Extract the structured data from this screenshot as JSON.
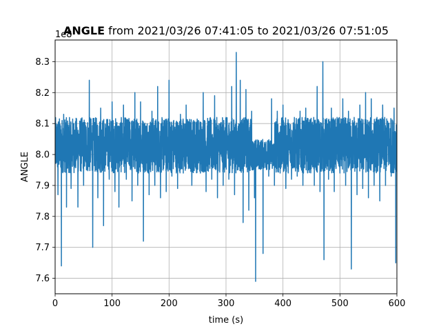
{
  "chart_data": {
    "type": "line",
    "title_bold": "ANGLE",
    "title_rest": " from 2021/03/26 07:41:05 to 2021/03/26 07:51:05",
    "xlabel": "time (s)",
    "ylabel": "ANGLE",
    "offset_text": "1e8",
    "xlim": [
      0,
      600
    ],
    "ylim": [
      7.55,
      8.37
    ],
    "xticks": [
      0,
      100,
      200,
      300,
      400,
      500,
      600
    ],
    "xtick_labels": [
      "0",
      "100",
      "200",
      "300",
      "400",
      "500",
      "600"
    ],
    "yticks": [
      7.6,
      7.7,
      7.8,
      7.9,
      8.0,
      8.1,
      8.2,
      8.3
    ],
    "ytick_labels": [
      "7.6",
      "7.7",
      "7.8",
      "7.9",
      "8.0",
      "8.1",
      "8.2",
      "8.3"
    ],
    "grid": true,
    "color": "#1f77b4",
    "series": [
      {
        "x": [
          0,
          5,
          10,
          11,
          15,
          20,
          25,
          28,
          32,
          40,
          45,
          50,
          52,
          55,
          60,
          66,
          68,
          75,
          80,
          85,
          90,
          95,
          100,
          105,
          110,
          112,
          120,
          125,
          130,
          135,
          140,
          145,
          150,
          155,
          160,
          165,
          170,
          175,
          180,
          185,
          190,
          195,
          200,
          205,
          210,
          215,
          220,
          225,
          230,
          240,
          250,
          255,
          260,
          265,
          270,
          275,
          280,
          285,
          290,
          295,
          300,
          305,
          310,
          315,
          318,
          320,
          325,
          330,
          335,
          340,
          345,
          350,
          352,
          355,
          360,
          365,
          370,
          375,
          380,
          385,
          390,
          395,
          400,
          405,
          410,
          415,
          420,
          425,
          430,
          435,
          440,
          445,
          450,
          455,
          460,
          465,
          470,
          472,
          475,
          480,
          485,
          490,
          495,
          500,
          505,
          510,
          515,
          520,
          525,
          530,
          535,
          540,
          545,
          550,
          555,
          560,
          565,
          570,
          575,
          580,
          585,
          590,
          595,
          598,
          600
        ],
        "y": [
          8.0,
          7.87,
          8.08,
          7.64,
          8.13,
          7.83,
          8.0,
          7.89,
          8.1,
          7.83,
          8.02,
          7.9,
          8.1,
          7.95,
          8.24,
          7.7,
          8.08,
          7.86,
          8.15,
          7.77,
          8.06,
          7.92,
          8.17,
          7.88,
          8.09,
          7.83,
          8.16,
          7.92,
          8.07,
          7.85,
          8.2,
          7.9,
          8.17,
          7.72,
          8.05,
          7.87,
          8.14,
          7.9,
          8.22,
          7.86,
          8.09,
          7.88,
          8.24,
          7.93,
          8.08,
          7.89,
          8.13,
          7.94,
          8.16,
          7.9,
          8.1,
          7.94,
          8.2,
          7.88,
          8.08,
          7.92,
          8.19,
          7.86,
          8.1,
          7.9,
          8.12,
          7.92,
          8.22,
          7.87,
          8.33,
          7.95,
          8.24,
          7.78,
          8.21,
          7.82,
          8.14,
          7.86,
          7.59,
          7.97,
          8.0,
          7.68,
          8.04,
          7.93,
          8.18,
          7.9,
          8.14,
          7.94,
          8.16,
          7.89,
          8.1,
          7.92,
          8.12,
          7.93,
          8.14,
          7.9,
          8.15,
          7.95,
          8.1,
          7.9,
          8.22,
          7.88,
          8.3,
          7.66,
          8.1,
          7.92,
          8.15,
          7.88,
          8.12,
          7.94,
          8.18,
          7.9,
          8.14,
          7.63,
          8.12,
          7.87,
          8.16,
          7.89,
          8.2,
          7.86,
          8.18,
          7.9,
          8.12,
          7.85,
          8.16,
          7.9,
          8.1,
          7.93,
          8.15,
          7.65,
          8.04
        ]
      }
    ]
  }
}
